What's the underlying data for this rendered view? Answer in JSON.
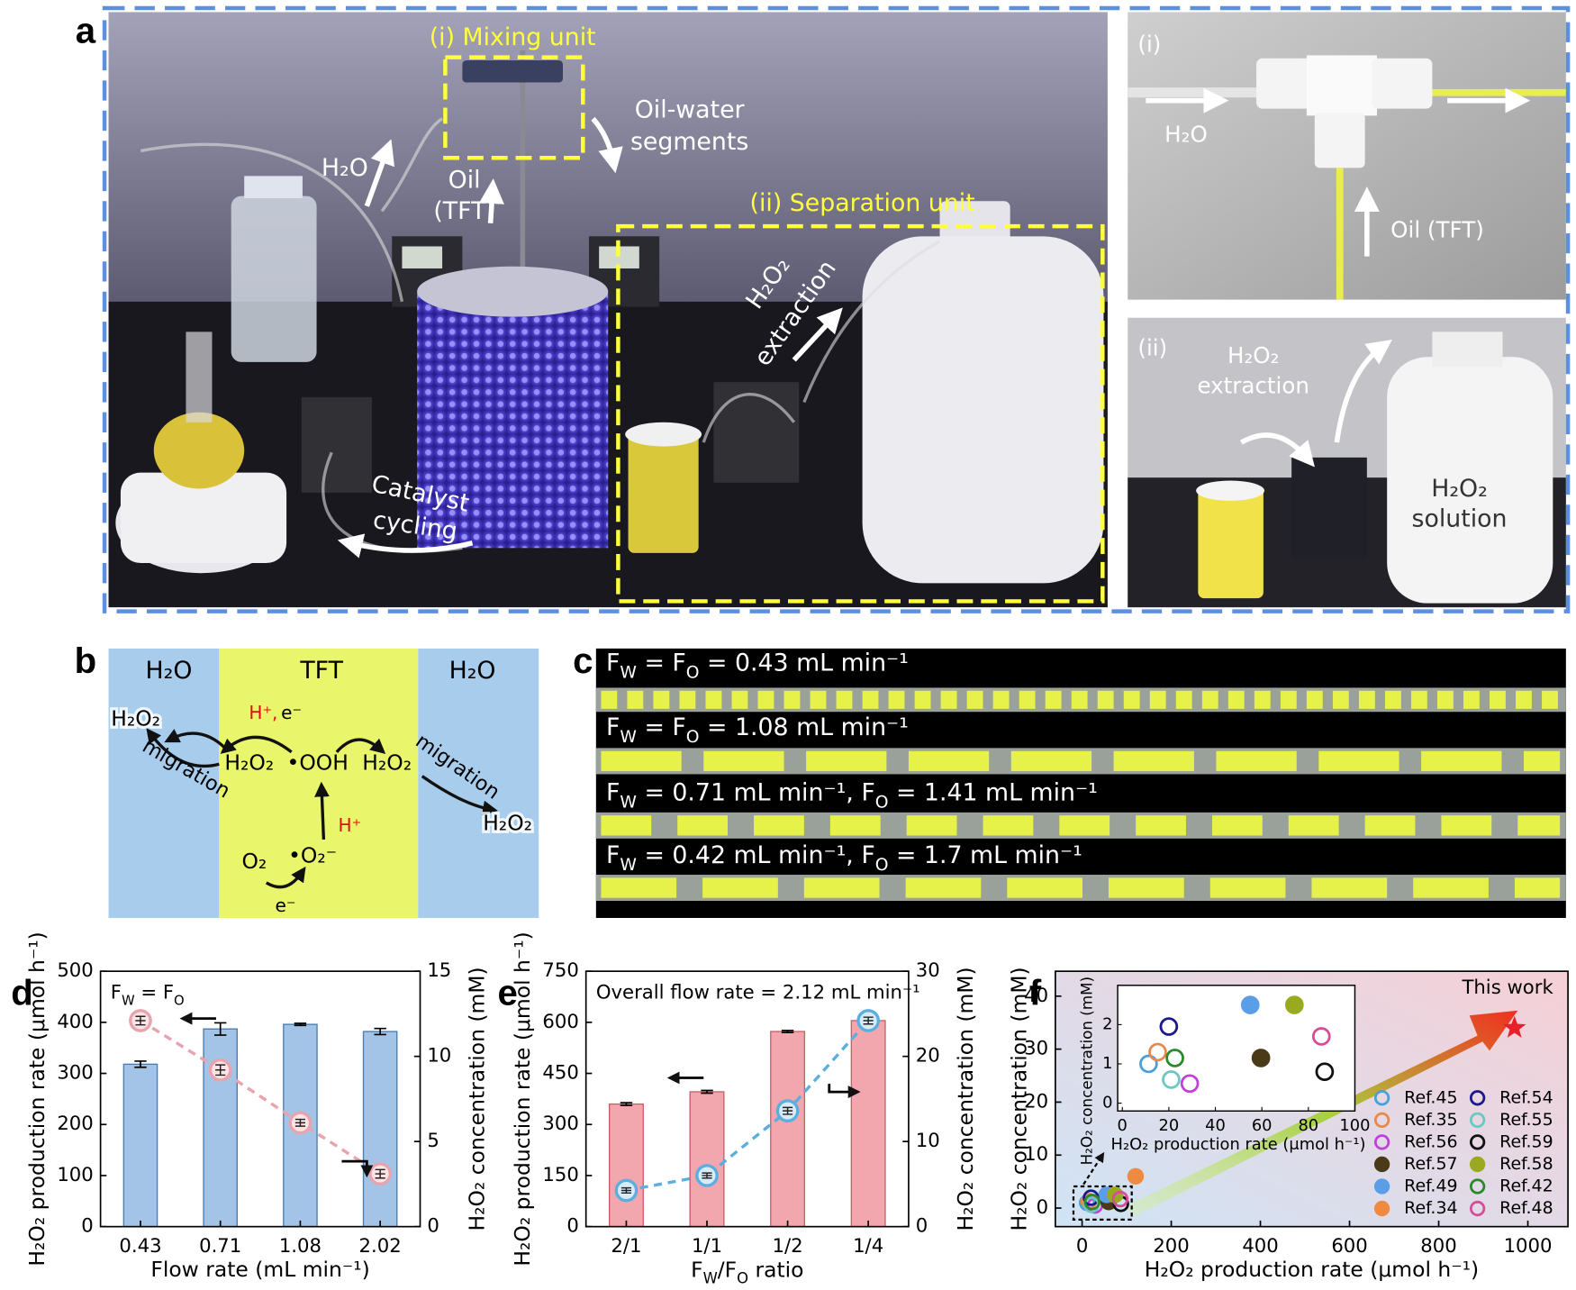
{
  "panel_a": {
    "label": "a",
    "labels": [
      "(i) Mixing unit",
      "Oil-water",
      "segments",
      "H₂O",
      "Oil",
      "(TFT)",
      "(ii) Separation unit",
      "H₂O₂",
      "extraction",
      "Catalyst",
      "cycling",
      "(i)",
      "H₂O",
      "Oil (TFT)",
      "(ii)",
      "H₂O₂",
      "extraction",
      "H₂O₂",
      "solution"
    ]
  },
  "panel_b": {
    "label": "b",
    "labels": [
      "H₂O",
      "TFT",
      "H₂O",
      "H₂O₂",
      "migration",
      "H⁺,",
      "e⁻",
      "H₂O₂",
      "•OOH",
      "H₂O₂",
      "migration",
      "H₂O₂",
      "H⁺",
      "O₂",
      "•O₂⁻",
      "e⁻"
    ]
  },
  "panel_c": {
    "label": "c",
    "labels": [
      [
        "F",
        {
          "sub": "W"
        },
        " = F",
        {
          "sub": "O"
        },
        " = 0.43 mL min⁻¹"
      ],
      [
        "F",
        {
          "sub": "W"
        },
        " = F",
        {
          "sub": "O"
        },
        " = 1.08 mL min⁻¹"
      ],
      [
        "F",
        {
          "sub": "W"
        },
        " = 0.71 mL min⁻¹, F",
        {
          "sub": "O"
        },
        " = 1.41 mL min⁻¹"
      ],
      [
        "F",
        {
          "sub": "W"
        },
        " = 0.42 mL min⁻¹, F",
        {
          "sub": "O"
        },
        " = 1.7 mL min⁻¹"
      ]
    ]
  },
  "chart_data": [
    {
      "type": "combo",
      "panel_label": "d",
      "annotation": [
        "F",
        {
          "sub": "W"
        },
        " = F",
        {
          "sub": "O"
        }
      ],
      "categories": [
        "0.43",
        "0.71",
        "1.08",
        "2.02"
      ],
      "xlabel": "Flow rate (mL min⁻¹)",
      "ylabel": "H₂O₂ production rate (μmol h⁻¹)",
      "y2label": "H₂O₂ concentration (mM)",
      "ylim": [
        0,
        500
      ],
      "yticks": [
        0,
        100,
        200,
        300,
        400,
        500
      ],
      "y2lim": [
        0,
        15
      ],
      "y2ticks": [
        0,
        5,
        10,
        15
      ],
      "series": [
        {
          "type": "bar",
          "color": "#a3c4e6",
          "edge": "#4a7cae",
          "values": [
            318,
            387,
            396,
            382
          ],
          "errors": [
            6,
            12,
            2,
            6
          ]
        },
        {
          "type": "line",
          "axis": "y2",
          "color": "#e8a3ad",
          "marker_fill": "#fbe3e6",
          "values": [
            12.1,
            9.2,
            6.1,
            3.1
          ],
          "errors": [
            0.25,
            0.3,
            0.2,
            0.25
          ]
        }
      ]
    },
    {
      "type": "combo",
      "panel_label": "e",
      "annotation": "Overall flow rate = 2.12 mL min⁻¹",
      "categories": [
        "2/1",
        "1/1",
        "1/2",
        "1/4"
      ],
      "xlabel": [
        "F",
        {
          "sub": "W"
        },
        "/F",
        {
          "sub": "O"
        },
        " ratio"
      ],
      "ylabel": "H₂O₂ production rate (μmol h⁻¹)",
      "y2label": "H₂O₂ concentration (mM)",
      "ylim": [
        0,
        750
      ],
      "yticks": [
        0,
        150,
        300,
        450,
        600,
        750
      ],
      "y2lim": [
        0,
        30
      ],
      "y2ticks": [
        0,
        10,
        20,
        30
      ],
      "series": [
        {
          "type": "bar",
          "color": "#f2a7ae",
          "edge": "#c5606a",
          "values": [
            360,
            396,
            573,
            605
          ],
          "errors": [
            4,
            4,
            3,
            5
          ]
        },
        {
          "type": "line",
          "axis": "y2",
          "color": "#5aaee0",
          "marker_fill": "#d8ecf8",
          "values": [
            4.25,
            6.0,
            13.6,
            24.2
          ],
          "errors": [
            0.3,
            0.3,
            0.4,
            0.4
          ]
        }
      ]
    },
    {
      "type": "scatter",
      "panel_label": "f",
      "xlabel": "H₂O₂ production rate (μmol h⁻¹)",
      "ylabel": "H₂O₂ concentration (mM)",
      "xlim": [
        -60,
        1090
      ],
      "xticks": [
        0,
        200,
        400,
        600,
        800,
        1000
      ],
      "ylim": [
        -3.5,
        44.7
      ],
      "yticks": [
        0,
        10,
        20,
        30,
        40
      ],
      "legend": "lower right",
      "highlight": {
        "label": "This work",
        "x": 970,
        "value": 34,
        "color": "#e8202a",
        "marker": "star"
      },
      "series": [
        {
          "name": "Ref.45",
          "color": "#4aa0dc",
          "filled": false,
          "x": [
            11.3
          ],
          "values": [
            1.0
          ]
        },
        {
          "name": "Ref.35",
          "color": "#e8894a",
          "filled": false,
          "x": [
            15.2
          ],
          "values": [
            1.3
          ]
        },
        {
          "name": "Ref.56",
          "color": "#c040d8",
          "filled": false,
          "x": [
            29
          ],
          "values": [
            0.5
          ]
        },
        {
          "name": "Ref.57",
          "color": "#4a3a18",
          "filled": true,
          "x": [
            59.6
          ],
          "values": [
            1.15
          ]
        },
        {
          "name": "Ref.49",
          "color": "#5b9ee8",
          "filled": true,
          "x": [
            55
          ],
          "values": [
            2.5
          ]
        },
        {
          "name": "Ref.34",
          "color": "#f08a40",
          "filled": true,
          "x": [
            120
          ],
          "values": [
            6
          ]
        },
        {
          "name": "Ref.54",
          "color": "#1a1a8a",
          "filled": false,
          "x": [
            20
          ],
          "values": [
            1.95
          ]
        },
        {
          "name": "Ref.55",
          "color": "#6ac8c0",
          "filled": false,
          "x": [
            21
          ],
          "values": [
            0.6
          ]
        },
        {
          "name": "Ref.59",
          "color": "#111111",
          "filled": false,
          "x": [
            87
          ],
          "values": [
            0.8
          ]
        },
        {
          "name": "Ref.58",
          "color": "#9aaa20",
          "filled": true,
          "x": [
            74
          ],
          "values": [
            2.5
          ]
        },
        {
          "name": "Ref.42",
          "color": "#2a8a2a",
          "filled": false,
          "x": [
            22.6
          ],
          "values": [
            1.15
          ]
        },
        {
          "name": "Ref.48",
          "color": "#d84a9a",
          "filled": false,
          "x": [
            85.6
          ],
          "values": [
            1.7
          ]
        }
      ],
      "inset": {
        "xlabel": "H₂O₂ production rate (μmol h⁻¹)",
        "ylabel": "H₂O₂ concentration (mM)",
        "xlim": [
          -2,
          100
        ],
        "xticks": [
          0,
          20,
          40,
          60,
          80,
          100
        ],
        "ylim": [
          -0.2,
          3.0
        ],
        "yticks": [
          0,
          1,
          2
        ]
      }
    }
  ]
}
